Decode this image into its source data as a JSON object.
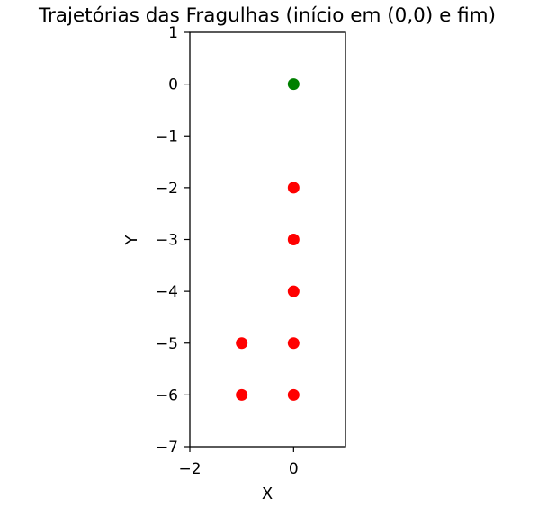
{
  "chart_data": {
    "type": "scatter",
    "title": "Trajetórias das Fragulhas (início em (0,0) e fim)",
    "xlabel": "X",
    "ylabel": "Y",
    "xlim": [
      -2,
      1
    ],
    "ylim": [
      -7,
      1
    ],
    "xticks": [
      -2,
      0
    ],
    "xtick_labels": [
      "−2",
      "0"
    ],
    "yticks": [
      1,
      0,
      -1,
      -2,
      -3,
      -4,
      -5,
      -6,
      -7
    ],
    "ytick_labels": [
      "1",
      "0",
      "−1",
      "−2",
      "−3",
      "−4",
      "−5",
      "−6",
      "−7"
    ],
    "grid": false,
    "legend": false,
    "series": [
      {
        "color": "#008000",
        "points": [
          [
            0,
            0
          ]
        ]
      },
      {
        "color": "#ff0000",
        "points": [
          [
            0,
            -2
          ],
          [
            0,
            -3
          ],
          [
            0,
            -4
          ],
          [
            0,
            -5
          ],
          [
            0,
            -6
          ],
          [
            -1,
            -5
          ],
          [
            -1,
            -6
          ]
        ]
      }
    ]
  }
}
